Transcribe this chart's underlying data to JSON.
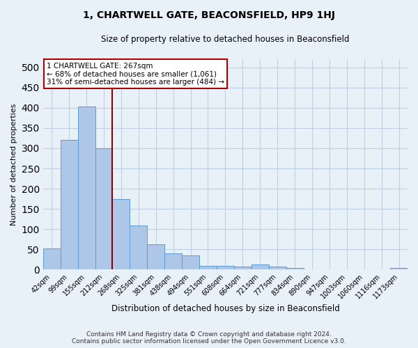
{
  "title": "1, CHARTWELL GATE, BEACONSFIELD, HP9 1HJ",
  "subtitle": "Size of property relative to detached houses in Beaconsfield",
  "xlabel": "Distribution of detached houses by size in Beaconsfield",
  "ylabel": "Number of detached properties",
  "footer_line1": "Contains HM Land Registry data © Crown copyright and database right 2024.",
  "footer_line2": "Contains public sector information licensed under the Open Government Licence v3.0.",
  "categories": [
    "42sqm",
    "99sqm",
    "155sqm",
    "212sqm",
    "268sqm",
    "325sqm",
    "381sqm",
    "438sqm",
    "494sqm",
    "551sqm",
    "608sqm",
    "664sqm",
    "721sqm",
    "777sqm",
    "834sqm",
    "890sqm",
    "947sqm",
    "1003sqm",
    "1060sqm",
    "1116sqm",
    "1173sqm"
  ],
  "values": [
    53,
    320,
    403,
    300,
    175,
    109,
    63,
    40,
    35,
    10,
    10,
    7,
    13,
    8,
    5,
    0,
    0,
    0,
    0,
    0,
    5
  ],
  "bar_color": "#aec6e8",
  "bar_edge_color": "#5b9bd5",
  "grid_color": "#c0d0e0",
  "background_color": "#e8f0f8",
  "vline_x": 3.5,
  "vline_color": "#8b0000",
  "annotation_text": "1 CHARTWELL GATE: 267sqm\n← 68% of detached houses are smaller (1,061)\n31% of semi-detached houses are larger (484) →",
  "annotation_box_facecolor": "#ffffff",
  "annotation_box_edgecolor": "#aa0000",
  "ylim": [
    0,
    520
  ],
  "yticks": [
    0,
    50,
    100,
    150,
    200,
    250,
    300,
    350,
    400,
    450,
    500
  ],
  "title_fontsize": 10,
  "subtitle_fontsize": 8.5,
  "ylabel_fontsize": 8,
  "xlabel_fontsize": 8.5,
  "tick_fontsize": 7,
  "footer_fontsize": 6.5
}
